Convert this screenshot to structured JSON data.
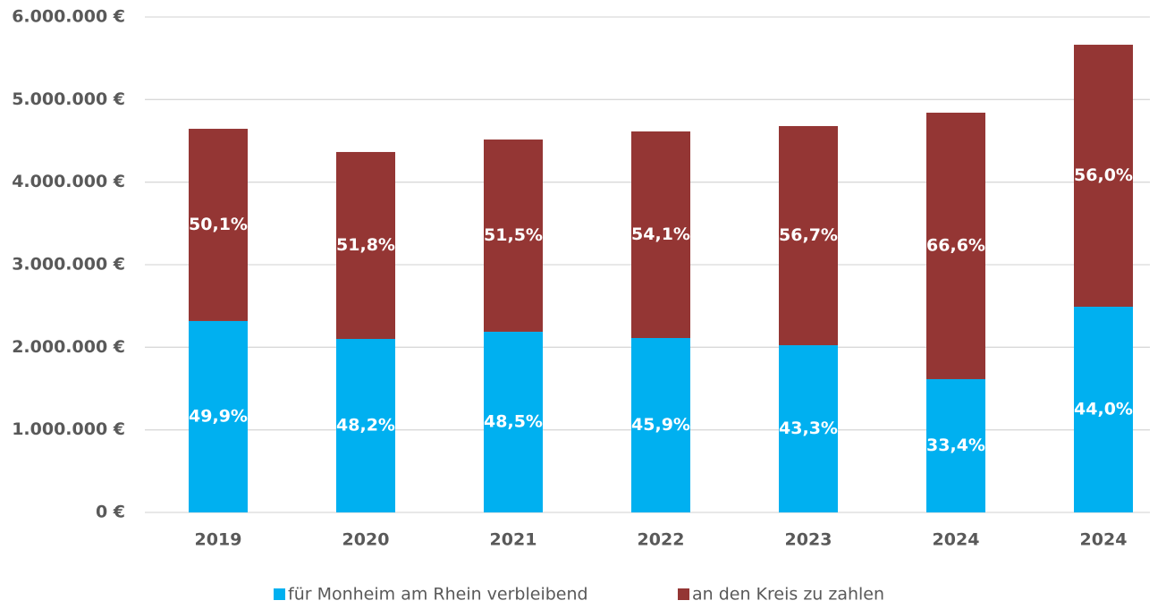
{
  "chart_data": {
    "type": "stacked_bar",
    "categories": [
      "2019",
      "2020",
      "2021",
      "2022",
      "2023",
      "2024",
      "2024"
    ],
    "series": [
      {
        "name": "für Monheim am Rhein verbleibend",
        "color": "#00b0f0",
        "values": [
          2318000,
          2101000,
          2188000,
          2112000,
          2025000,
          1614000,
          2491000
        ],
        "share_labels": [
          "49,9%",
          "48,2%",
          "48,5%",
          "45,9%",
          "43,3%",
          "33,4%",
          "44,0%"
        ]
      },
      {
        "name": "an den Kreis zu zahlen",
        "color": "#943634",
        "values": [
          2328000,
          2264000,
          2328000,
          2502000,
          2654000,
          3227000,
          3173000
        ],
        "share_labels": [
          "50,1%",
          "51,8%",
          "51,5%",
          "54,1%",
          "56,7%",
          "66,6%",
          "56,0%"
        ]
      }
    ],
    "ylim": [
      0,
      6000000
    ],
    "yticks": [
      {
        "value": 0,
        "label": "0 €"
      },
      {
        "value": 1000000,
        "label": "1.000.000 €"
      },
      {
        "value": 2000000,
        "label": "2.000.000 €"
      },
      {
        "value": 3000000,
        "label": "3.000.000 €"
      },
      {
        "value": 4000000,
        "label": "4.000.000 €"
      },
      {
        "value": 5000000,
        "label": "5.000.000 €"
      },
      {
        "value": 6000000,
        "label": "6.000.000 €"
      }
    ],
    "grid": true,
    "legend": "bottom"
  }
}
